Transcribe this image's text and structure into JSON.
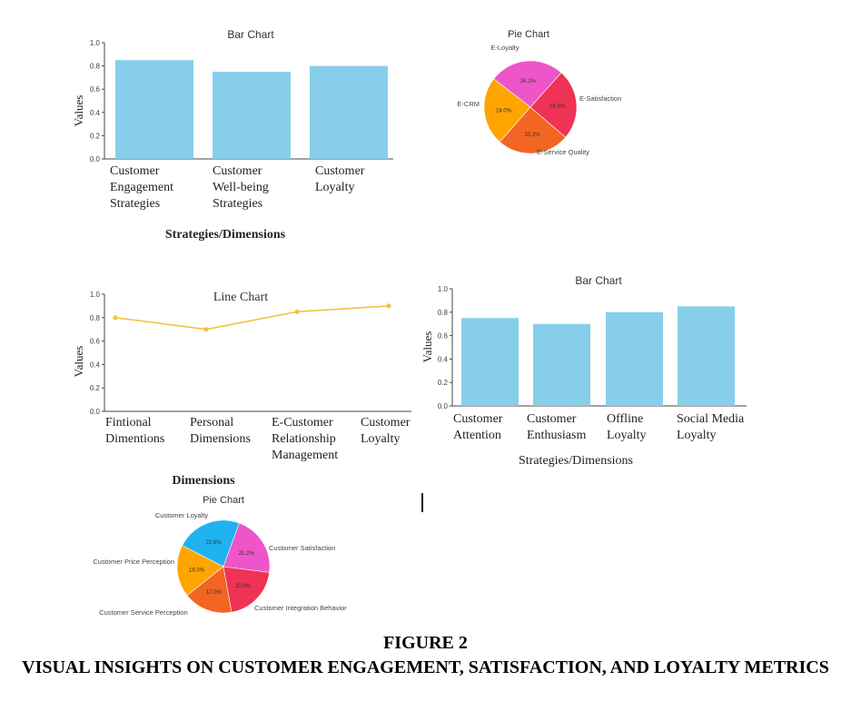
{
  "caption": {
    "figure": "FIGURE 2",
    "title": "VISUAL INSIGHTS ON CUSTOMER ENGAGEMENT, SATISFACTION, AND LOYALTY METRICS"
  },
  "colors": {
    "bar": "#87CEEB",
    "line": "#F5C242",
    "axis": "#444444",
    "pie_magenta": "#EE55C8",
    "pie_red": "#EE3355",
    "pie_orange": "#F26522",
    "pie_amber": "#FFA500",
    "pie_sky": "#1FB2F0"
  },
  "chart_data": [
    {
      "id": "bar1",
      "type": "bar",
      "title": "Bar Chart",
      "categories": [
        [
          "Customer",
          "Engagement",
          "Strategies"
        ],
        [
          "Customer",
          "Well-being",
          "Strategies"
        ],
        [
          "Customer",
          "Loyalty"
        ]
      ],
      "values": [
        0.85,
        0.75,
        0.8
      ],
      "ylabel": "Values",
      "xlabel": "Strategies/Dimensions",
      "ylim": [
        0,
        1.0
      ],
      "yticks": [
        "0.0",
        "0.2",
        "0.4",
        "0.6",
        "0.8",
        "1.0"
      ],
      "grid": false
    },
    {
      "id": "pie1",
      "type": "pie",
      "title": "Pie Chart",
      "slices": [
        {
          "label": "E-Loyalty",
          "pct_label": "26.2%",
          "value": 26.2,
          "color": "#EE55C8"
        },
        {
          "label": "E-CRM",
          "pct_label": "24.0%",
          "value": 24.0,
          "color": "#FFA500"
        },
        {
          "label": "E-Service Quality",
          "pct_label": "25.2%",
          "value": 25.2,
          "color": "#F26522"
        },
        {
          "label": "E-Satisfaction",
          "pct_label": "24.6%",
          "value": 24.6,
          "color": "#EE3355"
        }
      ]
    },
    {
      "id": "line1",
      "type": "line",
      "title": "Line Chart",
      "categories": [
        [
          "Fintional",
          "Dimentions"
        ],
        [
          "Personal",
          "Dimensions"
        ],
        [
          "E-Customer",
          "Relationship",
          "Management"
        ],
        [
          "Customer",
          "Loyalty"
        ]
      ],
      "values": [
        0.8,
        0.7,
        0.85,
        0.9
      ],
      "ylabel": "Values",
      "xlabel": "Dimensions",
      "ylim": [
        0,
        1.0
      ],
      "yticks": [
        "0.0",
        "0.2",
        "0.4",
        "0.6",
        "0.8",
        "1.0"
      ],
      "grid": false
    },
    {
      "id": "bar2",
      "type": "bar",
      "title": "Bar Chart",
      "categories": [
        [
          "Customer",
          "Attention"
        ],
        [
          "Customer",
          "Enthusiasm"
        ],
        [
          "Offline",
          "Loyalty"
        ],
        [
          "Social Media",
          "Loyalty"
        ]
      ],
      "values": [
        0.75,
        0.7,
        0.8,
        0.85
      ],
      "ylabel": "Values",
      "xlabel": "Strategies/Dimensions",
      "ylim": [
        0,
        1.0
      ],
      "yticks": [
        "0.0",
        "0.2",
        "0.4",
        "0.6",
        "0.8",
        "1.0"
      ],
      "grid": false
    },
    {
      "id": "pie2",
      "type": "pie",
      "title": "Pie Chart",
      "slices": [
        {
          "label": "Customer Loyalty",
          "pct_label": "22.8%",
          "value": 22.8,
          "color": "#1FB2F0"
        },
        {
          "label": "Customer Price Perception",
          "pct_label": "18.0%",
          "value": 18.0,
          "color": "#FFA500"
        },
        {
          "label": "Customer Service Perception",
          "pct_label": "17.0%",
          "value": 17.0,
          "color": "#F26522"
        },
        {
          "label": "Customer Integration Behavior",
          "pct_label": "20.0%",
          "value": 20.0,
          "color": "#EE3355"
        },
        {
          "label": "Customer Satisfaction",
          "pct_label": "21.2%",
          "value": 21.2,
          "color": "#EE55C8"
        }
      ]
    }
  ]
}
